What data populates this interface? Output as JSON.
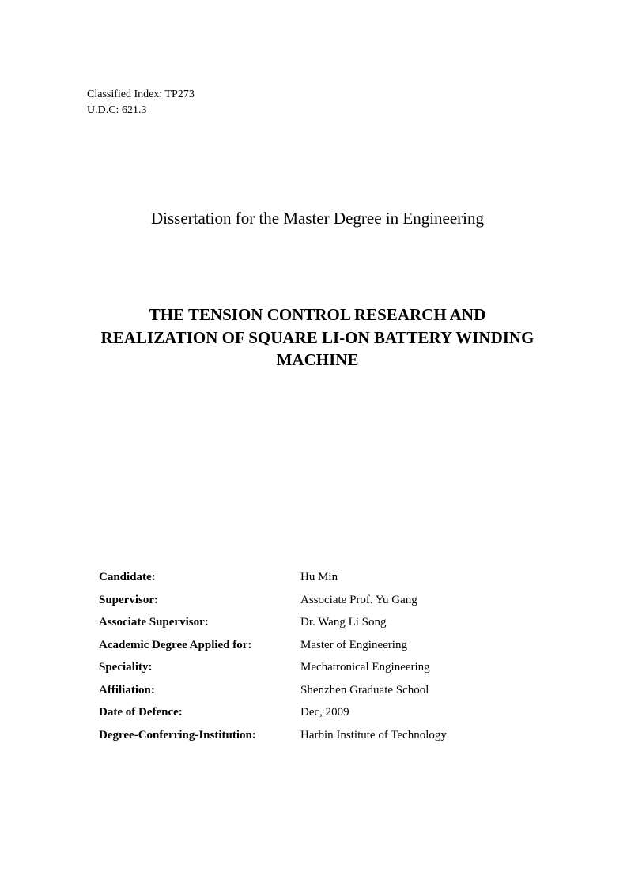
{
  "classification": {
    "classified_index": "Classified Index: TP273",
    "udc": "U.D.C: 621.3"
  },
  "dissertation_type": "Dissertation for the Master Degree in Engineering",
  "title": "THE TENSION CONTROL RESEARCH AND REALIZATION OF SQUARE LI-ON BATTERY WINDING MACHINE",
  "info": [
    {
      "label": "Candidate:",
      "value": "Hu Min"
    },
    {
      "label": "Supervisor:",
      "value": "Associate Prof. Yu Gang"
    },
    {
      "label": "Associate Supervisor:",
      "value": "Dr. Wang Li Song"
    },
    {
      "label": "Academic Degree Applied for:",
      "value": "Master of Engineering"
    },
    {
      "label": "Speciality:",
      "value": "Mechatronical Engineering"
    },
    {
      "label": "Affiliation:",
      "value": "Shenzhen Graduate School"
    },
    {
      "label": "Date of Defence:",
      "value": "Dec, 2009"
    },
    {
      "label": "Degree-Conferring-Institution:",
      "value": "Harbin Institute of Technology"
    }
  ]
}
